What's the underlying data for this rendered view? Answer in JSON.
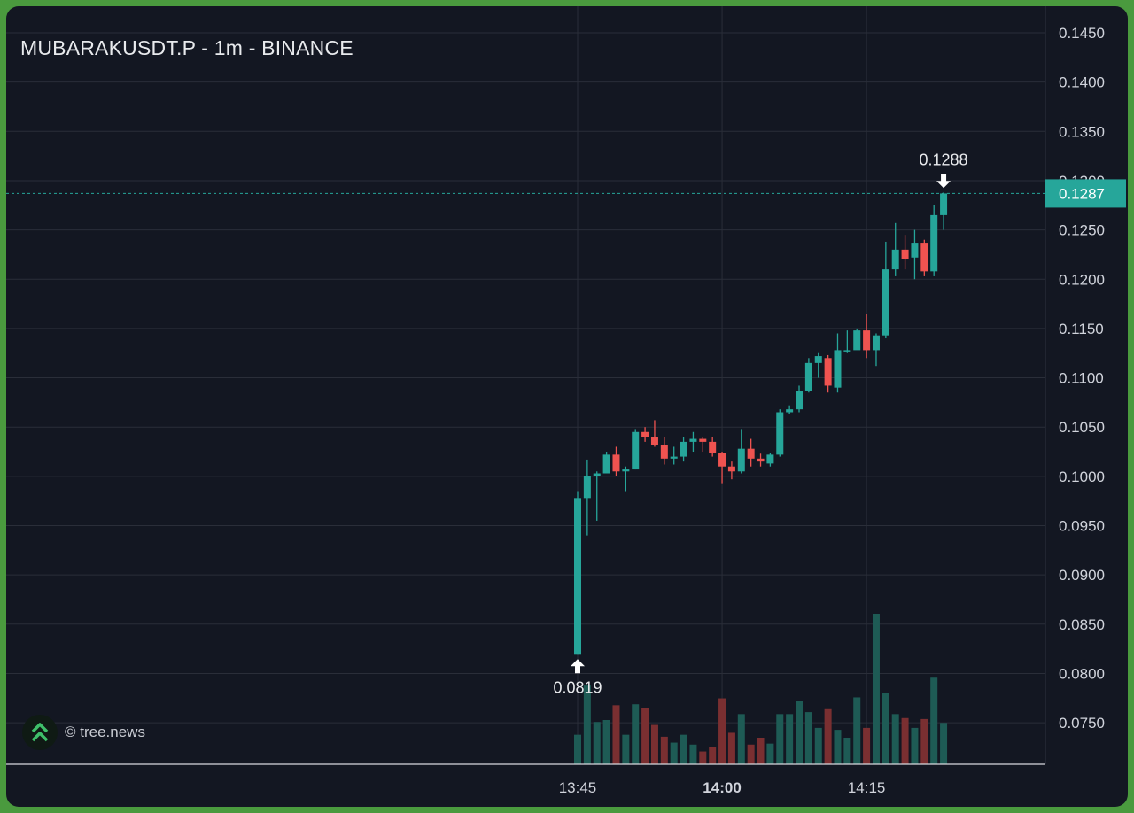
{
  "header": {
    "title": "MUBARAKUSDT.P - 1m - BINANCE"
  },
  "watermark": {
    "text": "© tree.news",
    "icon": "tree-news-chevrons-icon"
  },
  "colors": {
    "background": "#131722",
    "up": "#26a69a",
    "down": "#ef5350",
    "volume_up": "#1e5b55",
    "volume_down": "#7a2f31",
    "grid": "#2a2e39",
    "axis_text": "#d1d4dc",
    "frame": "#4a9a3e"
  },
  "chart_data": {
    "type": "candlestick",
    "title": "MUBARAKUSDT.P - 1m - BINANCE",
    "xlabel": "",
    "ylabel": "",
    "ylim": [
      0.0707,
      0.1462
    ],
    "grid": true,
    "x_ticks": [
      {
        "label": "13:45",
        "index": 0,
        "bold": false
      },
      {
        "label": "14:00",
        "index": 15,
        "bold": true
      },
      {
        "label": "14:15",
        "index": 30,
        "bold": false
      }
    ],
    "y_ticks": [
      "0.1450",
      "0.1400",
      "0.1350",
      "0.1300",
      "0.1250",
      "0.1200",
      "0.1150",
      "0.1100",
      "0.1050",
      "0.1000",
      "0.0950",
      "0.0900",
      "0.0850",
      "0.0800",
      "0.0750"
    ],
    "last_price": {
      "label": "0.1287",
      "value": 0.1287
    },
    "annotations": [
      {
        "label": "0.1288",
        "value": 0.1288,
        "index": 38,
        "direction": "down"
      },
      {
        "label": "0.0819",
        "value": 0.0819,
        "index": 0,
        "direction": "up"
      }
    ],
    "candles": [
      {
        "o": 0.0819,
        "h": 0.0985,
        "l": 0.0819,
        "c": 0.0978,
        "v": 30
      },
      {
        "o": 0.0978,
        "h": 0.1017,
        "l": 0.094,
        "c": 0.1,
        "v": 80
      },
      {
        "o": 0.1,
        "h": 0.1005,
        "l": 0.0955,
        "c": 0.1003,
        "v": 43
      },
      {
        "o": 0.1003,
        "h": 0.1025,
        "l": 0.1003,
        "c": 0.1022,
        "v": 45
      },
      {
        "o": 0.1022,
        "h": 0.103,
        "l": 0.1,
        "c": 0.1005,
        "v": 60
      },
      {
        "o": 0.1005,
        "h": 0.101,
        "l": 0.0985,
        "c": 0.1007,
        "v": 30
      },
      {
        "o": 0.1007,
        "h": 0.1048,
        "l": 0.1007,
        "c": 0.1045,
        "v": 61
      },
      {
        "o": 0.1045,
        "h": 0.105,
        "l": 0.1035,
        "c": 0.104,
        "v": 57
      },
      {
        "o": 0.104,
        "h": 0.1057,
        "l": 0.103,
        "c": 0.1032,
        "v": 40
      },
      {
        "o": 0.1032,
        "h": 0.104,
        "l": 0.1012,
        "c": 0.1018,
        "v": 28
      },
      {
        "o": 0.1018,
        "h": 0.103,
        "l": 0.1012,
        "c": 0.102,
        "v": 22
      },
      {
        "o": 0.102,
        "h": 0.104,
        "l": 0.1015,
        "c": 0.1035,
        "v": 30
      },
      {
        "o": 0.1035,
        "h": 0.1045,
        "l": 0.1025,
        "c": 0.1038,
        "v": 20
      },
      {
        "o": 0.1038,
        "h": 0.104,
        "l": 0.1025,
        "c": 0.1035,
        "v": 13
      },
      {
        "o": 0.1035,
        "h": 0.104,
        "l": 0.102,
        "c": 0.1024,
        "v": 18
      },
      {
        "o": 0.1024,
        "h": 0.1025,
        "l": 0.0993,
        "c": 0.101,
        "v": 67
      },
      {
        "o": 0.101,
        "h": 0.1015,
        "l": 0.0997,
        "c": 0.1005,
        "v": 32
      },
      {
        "o": 0.1005,
        "h": 0.1048,
        "l": 0.1003,
        "c": 0.1028,
        "v": 51
      },
      {
        "o": 0.1028,
        "h": 0.1038,
        "l": 0.101,
        "c": 0.1018,
        "v": 20
      },
      {
        "o": 0.1018,
        "h": 0.1023,
        "l": 0.101,
        "c": 0.1015,
        "v": 27
      },
      {
        "o": 0.1013,
        "h": 0.1024,
        "l": 0.101,
        "c": 0.1022,
        "v": 21
      },
      {
        "o": 0.1022,
        "h": 0.1068,
        "l": 0.102,
        "c": 0.1065,
        "v": 51
      },
      {
        "o": 0.1065,
        "h": 0.1072,
        "l": 0.1063,
        "c": 0.1068,
        "v": 51
      },
      {
        "o": 0.1068,
        "h": 0.1092,
        "l": 0.1065,
        "c": 0.1087,
        "v": 64
      },
      {
        "o": 0.1087,
        "h": 0.112,
        "l": 0.1085,
        "c": 0.1115,
        "v": 53
      },
      {
        "o": 0.1115,
        "h": 0.1125,
        "l": 0.11,
        "c": 0.1122,
        "v": 37
      },
      {
        "o": 0.112,
        "h": 0.1123,
        "l": 0.1085,
        "c": 0.1092,
        "v": 56
      },
      {
        "o": 0.109,
        "h": 0.1145,
        "l": 0.1085,
        "c": 0.1128,
        "v": 35
      },
      {
        "o": 0.1128,
        "h": 0.1148,
        "l": 0.1125,
        "c": 0.1128,
        "v": 27
      },
      {
        "o": 0.1128,
        "h": 0.115,
        "l": 0.113,
        "c": 0.1148,
        "v": 68
      },
      {
        "o": 0.1148,
        "h": 0.1165,
        "l": 0.112,
        "c": 0.1128,
        "v": 37
      },
      {
        "o": 0.1128,
        "h": 0.1145,
        "l": 0.1112,
        "c": 0.1143,
        "v": 153
      },
      {
        "o": 0.1143,
        "h": 0.1238,
        "l": 0.114,
        "c": 0.121,
        "v": 72
      },
      {
        "o": 0.121,
        "h": 0.1257,
        "l": 0.1203,
        "c": 0.123,
        "v": 51
      },
      {
        "o": 0.123,
        "h": 0.1245,
        "l": 0.121,
        "c": 0.122,
        "v": 47
      },
      {
        "o": 0.1222,
        "h": 0.125,
        "l": 0.12,
        "c": 0.1237,
        "v": 37
      },
      {
        "o": 0.1237,
        "h": 0.124,
        "l": 0.1203,
        "c": 0.1208,
        "v": 46
      },
      {
        "o": 0.1208,
        "h": 0.1275,
        "l": 0.1203,
        "c": 0.1265,
        "v": 88
      },
      {
        "o": 0.1265,
        "h": 0.1288,
        "l": 0.125,
        "c": 0.1287,
        "v": 42
      }
    ]
  }
}
